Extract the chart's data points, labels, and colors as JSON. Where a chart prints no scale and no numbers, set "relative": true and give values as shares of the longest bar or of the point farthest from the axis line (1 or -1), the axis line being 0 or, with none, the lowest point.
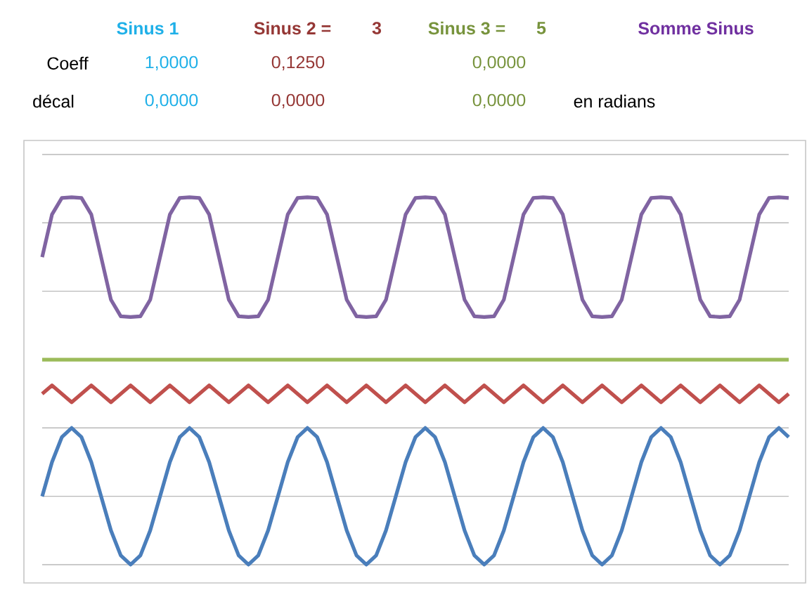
{
  "chart_data": {
    "type": "line",
    "relative": true,
    "grid": "y",
    "annotations": [
      "Sinus 1",
      "Sinus 2 =",
      "3",
      "Sinus 3 =",
      "5",
      "Somme Sinus",
      "Coeff",
      "1,0000",
      "0,1250",
      "0,0000",
      "décal",
      "0,0000",
      "0,0000",
      "0,0000",
      "en radians"
    ],
    "categories": [
      null,
      null,
      null,
      null,
      null,
      null,
      null,
      null,
      null,
      null,
      null,
      null,
      null,
      null,
      null,
      null,
      null,
      null,
      null,
      null,
      null,
      null,
      null,
      null,
      null,
      null,
      null,
      null,
      null,
      null,
      null,
      null,
      null,
      null,
      null,
      null,
      null,
      null,
      null,
      null,
      null,
      null,
      null,
      null,
      null,
      null,
      null,
      null,
      null,
      null,
      null,
      null,
      null,
      null,
      null,
      null,
      null,
      null,
      null,
      null,
      null,
      null,
      null,
      null,
      null,
      null,
      null,
      null,
      null,
      null,
      null,
      null,
      null,
      null,
      null,
      null,
      null
    ],
    "series": [
      {
        "color": "#4a7ebb",
        "values": [
          0.186,
          0.279,
          0.347,
          0.372,
          0.347,
          0.279,
          0.186,
          0.093,
          0.025,
          0,
          0.025,
          0.093,
          0.186,
          0.279,
          0.347,
          0.372,
          0.347,
          0.279,
          0.186,
          0.093,
          0.025,
          0,
          0.025,
          0.093,
          0.186,
          0.279,
          0.347,
          0.372,
          0.347,
          0.279,
          0.186,
          0.093,
          0.025,
          0,
          0.025,
          0.093,
          0.186,
          0.279,
          0.347,
          0.372,
          0.347,
          0.279,
          0.186,
          0.093,
          0.025,
          0,
          0.025,
          0.093,
          0.186,
          0.279,
          0.347,
          0.372,
          0.347,
          0.279,
          0.186,
          0.093,
          0.025,
          0,
          0.025,
          0.093,
          0.186,
          0.279,
          0.347,
          0.372,
          0.347,
          0.279,
          0.186,
          0.093,
          0.025,
          0,
          0.025,
          0.093,
          0.186,
          0.279,
          0.347,
          0.372,
          0.347
        ]
      },
      {
        "color": "#c0504d",
        "values": [
          0.465,
          0.488,
          0.465,
          0.442,
          0.465,
          0.488,
          0.465,
          0.442,
          0.465,
          0.488,
          0.465,
          0.442,
          0.465,
          0.488,
          0.465,
          0.442,
          0.465,
          0.488,
          0.465,
          0.442,
          0.465,
          0.488,
          0.465,
          0.442,
          0.465,
          0.488,
          0.465,
          0.442,
          0.465,
          0.488,
          0.465,
          0.442,
          0.465,
          0.488,
          0.465,
          0.442,
          0.465,
          0.488,
          0.465,
          0.442,
          0.465,
          0.488,
          0.465,
          0.442,
          0.465,
          0.488,
          0.465,
          0.442,
          0.465,
          0.488,
          0.465,
          0.442,
          0.465,
          0.488,
          0.465,
          0.442,
          0.465,
          0.488,
          0.465,
          0.442,
          0.465,
          0.488,
          0.465,
          0.442,
          0.465,
          0.488,
          0.465,
          0.442,
          0.465,
          0.488,
          0.465,
          0.442,
          0.465,
          0.488,
          0.465,
          0.442,
          0.465
        ]
      },
      {
        "color": "#9bbb59",
        "values": [
          0.558,
          0.558,
          0.558,
          0.558,
          0.558,
          0.558,
          0.558,
          0.558,
          0.558,
          0.558,
          0.558,
          0.558,
          0.558,
          0.558,
          0.558,
          0.558,
          0.558,
          0.558,
          0.558,
          0.558,
          0.558,
          0.558,
          0.558,
          0.558,
          0.558,
          0.558,
          0.558,
          0.558,
          0.558,
          0.558,
          0.558,
          0.558,
          0.558,
          0.558,
          0.558,
          0.558,
          0.558,
          0.558,
          0.558,
          0.558,
          0.558,
          0.558,
          0.558,
          0.558,
          0.558,
          0.558,
          0.558,
          0.558,
          0.558,
          0.558,
          0.558,
          0.558,
          0.558,
          0.558,
          0.558,
          0.558,
          0.558,
          0.558,
          0.558,
          0.558,
          0.558,
          0.558,
          0.558,
          0.558,
          0.558,
          0.558,
          0.558,
          0.558,
          0.558,
          0.558,
          0.558,
          0.558,
          0.558,
          0.558,
          0.558,
          0.558,
          0.558
        ]
      },
      {
        "color": "#8064a2",
        "values": [
          0.837,
          0.953,
          0.998,
          1,
          0.998,
          0.953,
          0.837,
          0.721,
          0.676,
          0.674,
          0.676,
          0.721,
          0.837,
          0.953,
          0.998,
          1,
          0.998,
          0.953,
          0.837,
          0.721,
          0.676,
          0.674,
          0.676,
          0.721,
          0.837,
          0.953,
          0.998,
          1,
          0.998,
          0.953,
          0.837,
          0.721,
          0.676,
          0.674,
          0.676,
          0.721,
          0.837,
          0.953,
          0.998,
          1,
          0.998,
          0.953,
          0.837,
          0.721,
          0.676,
          0.674,
          0.676,
          0.721,
          0.837,
          0.953,
          0.998,
          1,
          0.998,
          0.953,
          0.837,
          0.721,
          0.676,
          0.674,
          0.676,
          0.721,
          0.837,
          0.953,
          0.998,
          1,
          0.998,
          0.953,
          0.837,
          0.721,
          0.676,
          0.674,
          0.676,
          0.721,
          0.837,
          0.953,
          0.998,
          1,
          0.998
        ]
      }
    ]
  }
}
